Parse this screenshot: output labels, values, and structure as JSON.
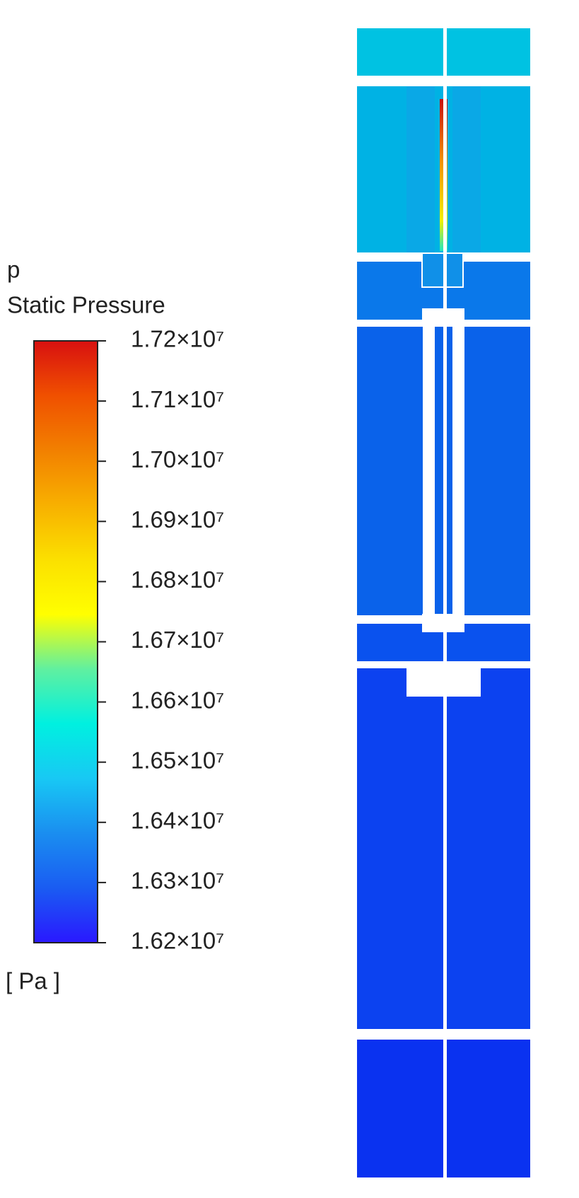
{
  "chart_data": {
    "type": "contour",
    "variable": "p",
    "title": "Static Pressure",
    "unit": "[ Pa ]",
    "clim": [
      16200000,
      17200000
    ],
    "cticks": [
      {
        "value": 16200000,
        "label": "1.62×10⁷"
      },
      {
        "value": 16300000,
        "label": "1.63×10⁷"
      },
      {
        "value": 16400000,
        "label": "1.64×10⁷"
      },
      {
        "value": 16500000,
        "label": "1.65×10⁷"
      },
      {
        "value": 16600000,
        "label": "1.66×10⁷"
      },
      {
        "value": 16700000,
        "label": "1.67×10⁷"
      },
      {
        "value": 16800000,
        "label": "1.68×10⁷"
      },
      {
        "value": 16900000,
        "label": "1.69×10⁷"
      },
      {
        "value": 17000000,
        "label": "1.70×10⁷"
      },
      {
        "value": 17100000,
        "label": "1.71×10⁷"
      },
      {
        "value": 17200000,
        "label": "1.72×10⁷"
      }
    ],
    "colormap": [
      "#2a18ff",
      "#1a5cf2",
      "#1a8ef0",
      "#18c8f4",
      "#00f0e0",
      "#60f0a0",
      "#ffff00",
      "#fbe000",
      "#f8b000",
      "#f28000",
      "#f05000",
      "#d81010"
    ]
  }
}
